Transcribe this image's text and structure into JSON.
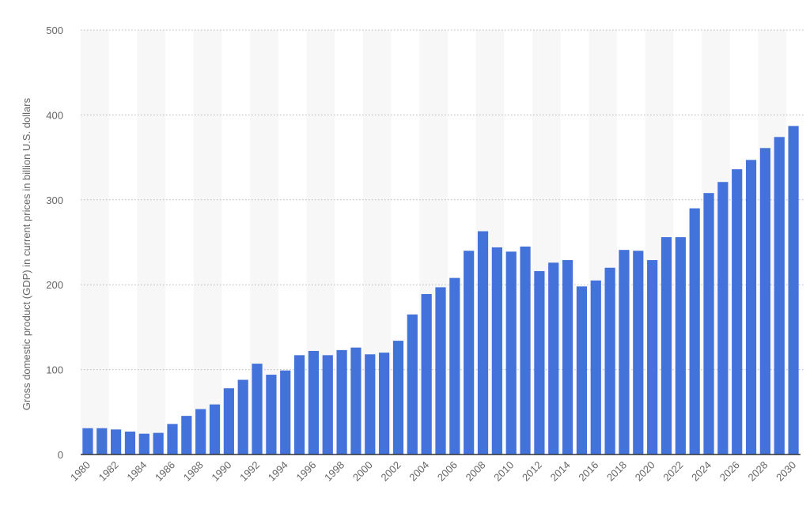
{
  "chart_data": {
    "type": "bar",
    "title": "",
    "xlabel": "",
    "ylabel": "Gross domestic product (GDP) in current prices in billion U.S. dollars",
    "ylim": [
      0,
      500
    ],
    "yticks": [
      "0",
      "100",
      "200",
      "300",
      "400",
      "500"
    ],
    "grid": true,
    "bar_color": "#4472db",
    "band_color": "#f7f7f7",
    "categories": [
      "1980",
      "1981",
      "1982",
      "1983",
      "1984",
      "1985",
      "1986",
      "1987",
      "1988",
      "1989",
      "1990",
      "1991",
      "1992",
      "1993",
      "1994",
      "1995",
      "1996",
      "1997",
      "1998",
      "1999",
      "2000",
      "2001",
      "2002",
      "2003",
      "2004",
      "2005",
      "2006",
      "2007",
      "2008",
      "2009",
      "2010",
      "2011",
      "2012",
      "2013",
      "2014",
      "2015",
      "2016",
      "2017",
      "2018",
      "2019",
      "2020",
      "2021",
      "2022",
      "2023",
      "2024",
      "2025",
      "2026",
      "2027",
      "2028",
      "2029",
      "2030"
    ],
    "values": [
      31,
      31,
      29.5,
      27,
      24.5,
      25.5,
      36,
      45.5,
      53.5,
      59,
      78,
      88,
      107,
      94,
      99,
      117,
      122,
      117,
      123,
      126,
      118,
      120,
      134,
      165,
      189,
      197,
      208,
      240,
      263,
      244,
      239,
      245,
      216,
      226,
      229,
      198,
      205,
      220,
      241,
      240,
      229,
      256,
      256,
      290,
      308,
      321,
      336,
      347,
      361,
      374,
      387
    ],
    "xtick_labels": [
      "1980",
      "1982",
      "1984",
      "1986",
      "1988",
      "1990",
      "1992",
      "1994",
      "1996",
      "1998",
      "2000",
      "2002",
      "2004",
      "2006",
      "2008",
      "2010",
      "2012",
      "2014",
      "2016",
      "2018",
      "2020",
      "2022",
      "2024",
      "2026",
      "2028",
      "2030"
    ]
  }
}
